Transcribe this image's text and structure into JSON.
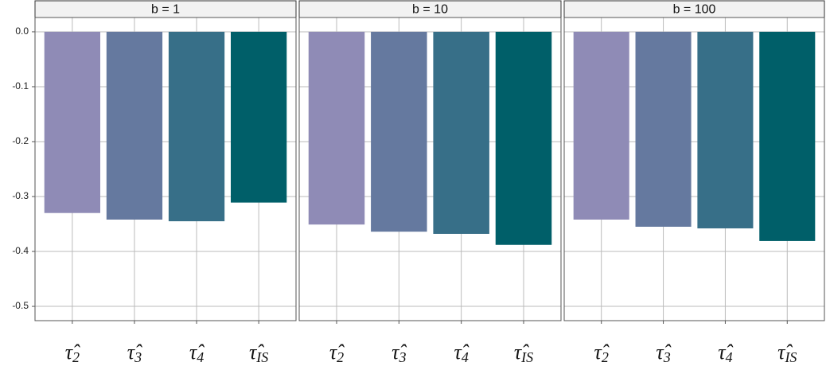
{
  "chart_data": [
    {
      "type": "bar",
      "title": "b = 1",
      "categories": [
        "τ̂2",
        "τ̂3",
        "τ̂4",
        "τ̂IS"
      ],
      "values": [
        -0.33,
        -0.342,
        -0.345,
        -0.311
      ],
      "colors": [
        "#8f8bb6",
        "#65799f",
        "#376f88",
        "#005f69"
      ],
      "ylim": [
        -0.526,
        0.026
      ],
      "yticks": [
        {
          "value": 0,
          "label": "0.0"
        },
        -0.1,
        -0.2,
        -0.3,
        -0.4,
        -0.5
      ],
      "grid": true
    },
    {
      "type": "bar",
      "title": "b = 10",
      "categories": [
        "τ̂2",
        "τ̂3",
        "τ̂4",
        "τ̂IS"
      ],
      "values": [
        -0.351,
        -0.364,
        -0.368,
        -0.388
      ],
      "colors": [
        "#8f8bb6",
        "#65799f",
        "#376f88",
        "#005f69"
      ],
      "ylim": [
        -0.526,
        0.026
      ],
      "yticks": [
        {
          "value": 0,
          "label": "0.0"
        },
        -0.1,
        -0.2,
        -0.3,
        -0.4,
        -0.5
      ],
      "grid": true
    },
    {
      "type": "bar",
      "title": "b = 100",
      "categories": [
        "τ̂2",
        "τ̂3",
        "τ̂4",
        "τ̂IS"
      ],
      "values": [
        -0.342,
        -0.355,
        -0.358,
        -0.381
      ],
      "colors": [
        "#8f8bb6",
        "#65799f",
        "#376f88",
        "#005f69"
      ],
      "ylim": [
        -0.526,
        0.026
      ],
      "yticks": [
        {
          "value": 0,
          "label": "0.0"
        },
        -0.1,
        -0.2,
        -0.3,
        -0.4,
        -0.5
      ],
      "grid": true
    }
  ]
}
